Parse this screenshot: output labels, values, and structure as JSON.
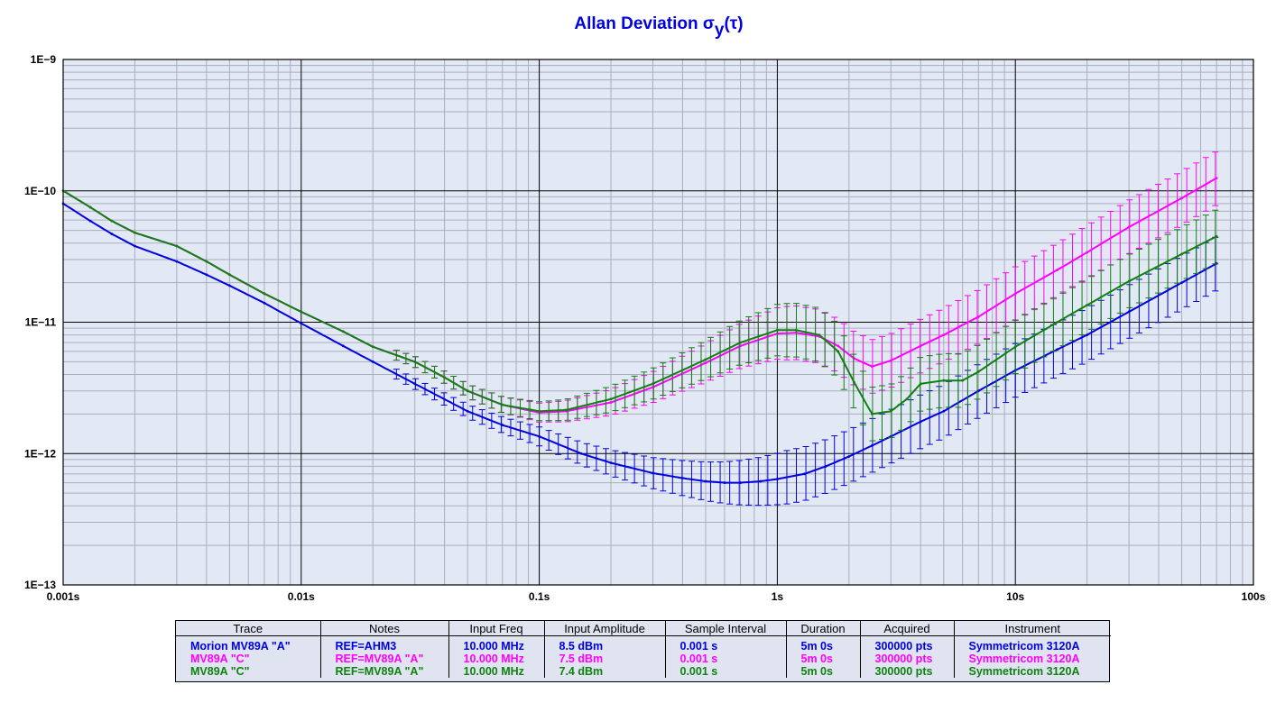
{
  "colors": {
    "background": "#e2e8f4",
    "grid_major": "#000000",
    "grid_minor": "#a8aebc",
    "title": "#0000e0"
  },
  "chart_data": {
    "type": "line",
    "title": "Allan Deviation σ",
    "title_sub": "y",
    "title_tail": "(τ)",
    "xscale": "log",
    "yscale": "log",
    "xlim": [
      0.001,
      100
    ],
    "ylim": [
      1e-13,
      1e-09
    ],
    "grid": true,
    "xticks": [
      {
        "value": 0.001,
        "label": "0.001s"
      },
      {
        "value": 0.01,
        "label": "0.01s"
      },
      {
        "value": 0.1,
        "label": "0.1s"
      },
      {
        "value": 1,
        "label": "1s"
      },
      {
        "value": 10,
        "label": "10s"
      },
      {
        "value": 100,
        "label": "100s"
      }
    ],
    "yticks": [
      {
        "value": 1e-09,
        "label": "1E−9"
      },
      {
        "value": 1e-10,
        "label": "1E−10"
      },
      {
        "value": 1e-11,
        "label": "1E−11"
      },
      {
        "value": 1e-12,
        "label": "1E−12"
      },
      {
        "value": 1e-13,
        "label": "1E−13"
      }
    ],
    "series": [
      {
        "name": "Morion MV89A \"A\"",
        "color": "#0000e0",
        "points": [
          [
            0.001,
            8e-11
          ],
          [
            0.0013,
            5.9e-11
          ],
          [
            0.0016,
            4.7e-11
          ],
          [
            0.002,
            3.8e-11
          ],
          [
            0.003,
            2.9e-11
          ],
          [
            0.004,
            2.3e-11
          ],
          [
            0.005,
            1.9e-11
          ],
          [
            0.007,
            1.4e-11
          ],
          [
            0.01,
            9.8e-12
          ],
          [
            0.015,
            6.6e-12
          ],
          [
            0.02,
            5e-12
          ],
          [
            0.03,
            3.4e-12
          ],
          [
            0.05,
            2.1e-12
          ],
          [
            0.07,
            1.65e-12
          ],
          [
            0.1,
            1.35e-12
          ],
          [
            0.15,
            1e-12
          ],
          [
            0.2,
            8.5e-13
          ],
          [
            0.3,
            7.1e-13
          ],
          [
            0.4,
            6.5e-13
          ],
          [
            0.5,
            6.15e-13
          ],
          [
            0.6,
            6e-13
          ],
          [
            0.7,
            6e-13
          ],
          [
            0.85,
            6.15e-13
          ],
          [
            1.0,
            6.4e-13
          ],
          [
            1.3,
            7e-13
          ],
          [
            1.6,
            8e-13
          ],
          [
            2.0,
            9.5e-13
          ],
          [
            2.5,
            1.15e-12
          ],
          [
            3.0,
            1.35e-12
          ],
          [
            4.0,
            1.75e-12
          ],
          [
            5.0,
            2.1e-12
          ],
          [
            7.0,
            3e-12
          ],
          [
            10.0,
            4.3e-12
          ],
          [
            15.0,
            6.2e-12
          ],
          [
            20.0,
            8e-12
          ],
          [
            30.0,
            1.2e-11
          ],
          [
            50.0,
            2e-11
          ],
          [
            70.0,
            2.8e-11
          ]
        ]
      },
      {
        "name": "MV89A \"C\"",
        "color": "#ff00ff",
        "points": [
          [
            0.001,
            1e-10
          ],
          [
            0.0013,
            7.5e-11
          ],
          [
            0.0016,
            5.9e-11
          ],
          [
            0.002,
            4.8e-11
          ],
          [
            0.003,
            3.8e-11
          ],
          [
            0.004,
            2.9e-11
          ],
          [
            0.005,
            2.3e-11
          ],
          [
            0.007,
            1.65e-11
          ],
          [
            0.01,
            1.2e-11
          ],
          [
            0.015,
            8.5e-12
          ],
          [
            0.02,
            6.5e-12
          ],
          [
            0.03,
            5e-12
          ],
          [
            0.04,
            3.8e-12
          ],
          [
            0.05,
            3e-12
          ],
          [
            0.07,
            2.35e-12
          ],
          [
            0.1,
            2.05e-12
          ],
          [
            0.13,
            2.1e-12
          ],
          [
            0.2,
            2.45e-12
          ],
          [
            0.3,
            3.2e-12
          ],
          [
            0.5,
            4.9e-12
          ],
          [
            0.7,
            6.6e-12
          ],
          [
            1.0,
            8.2e-12
          ],
          [
            1.2,
            8.3e-12
          ],
          [
            1.5,
            7.8e-12
          ],
          [
            1.8,
            6.6e-12
          ],
          [
            2.1,
            5.3e-12
          ],
          [
            2.5,
            4.6e-12
          ],
          [
            3.0,
            5.1e-12
          ],
          [
            4.0,
            6.6e-12
          ],
          [
            5.0,
            8e-12
          ],
          [
            7.0,
            1.1e-11
          ],
          [
            10.0,
            1.65e-11
          ],
          [
            15.0,
            2.5e-11
          ],
          [
            20.0,
            3.4e-11
          ],
          [
            30.0,
            5.3e-11
          ],
          [
            50.0,
            8.8e-11
          ],
          [
            70.0,
            1.25e-10
          ]
        ]
      },
      {
        "name": "MV89A \"C\"",
        "color": "#108010",
        "points": [
          [
            0.001,
            1e-10
          ],
          [
            0.0013,
            7.5e-11
          ],
          [
            0.0016,
            5.9e-11
          ],
          [
            0.002,
            4.8e-11
          ],
          [
            0.003,
            3.8e-11
          ],
          [
            0.004,
            2.9e-11
          ],
          [
            0.005,
            2.3e-11
          ],
          [
            0.007,
            1.65e-11
          ],
          [
            0.01,
            1.2e-11
          ],
          [
            0.015,
            8.5e-12
          ],
          [
            0.02,
            6.5e-12
          ],
          [
            0.03,
            5e-12
          ],
          [
            0.04,
            3.8e-12
          ],
          [
            0.05,
            3e-12
          ],
          [
            0.07,
            2.35e-12
          ],
          [
            0.1,
            2.1e-12
          ],
          [
            0.13,
            2.15e-12
          ],
          [
            0.2,
            2.6e-12
          ],
          [
            0.3,
            3.4e-12
          ],
          [
            0.5,
            5.2e-12
          ],
          [
            0.7,
            7e-12
          ],
          [
            1.0,
            8.7e-12
          ],
          [
            1.2,
            8.7e-12
          ],
          [
            1.5,
            8e-12
          ],
          [
            1.8,
            6e-12
          ],
          [
            2.1,
            3.5e-12
          ],
          [
            2.5,
            2e-12
          ],
          [
            3.0,
            2.1e-12
          ],
          [
            3.5,
            2.6e-12
          ],
          [
            4.0,
            3.4e-12
          ],
          [
            5.0,
            3.6e-12
          ],
          [
            6.0,
            3.6e-12
          ],
          [
            7.0,
            4.2e-12
          ],
          [
            10.0,
            6.5e-12
          ],
          [
            15.0,
            1e-11
          ],
          [
            20.0,
            1.35e-11
          ],
          [
            30.0,
            2.05e-11
          ],
          [
            50.0,
            3.3e-11
          ],
          [
            70.0,
            4.5e-11
          ]
        ]
      }
    ]
  },
  "legend_table": {
    "headers": [
      "Trace",
      "Notes",
      "Input Freq",
      "Input Amplitude",
      "Sample Interval",
      "Duration",
      "Acquired",
      "Instrument"
    ],
    "rows": [
      {
        "color": "#0000e0",
        "cells": [
          "Morion MV89A \"A\"",
          "REF=AHM3",
          "10.000 MHz",
          "8.5 dBm",
          "0.001 s",
          "5m 0s",
          "300000 pts",
          "Symmetricom 3120A"
        ]
      },
      {
        "color": "#ff00ff",
        "cells": [
          "MV89A \"C\"",
          "REF=MV89A \"A\"",
          "10.000 MHz",
          "7.5 dBm",
          "0.001 s",
          "5m 0s",
          "300000 pts",
          "Symmetricom 3120A"
        ]
      },
      {
        "color": "#108010",
        "cells": [
          "MV89A \"C\"",
          "REF=MV89A \"A\"",
          "10.000 MHz",
          "7.4 dBm",
          "0.001 s",
          "5m 0s",
          "300000 pts",
          "Symmetricom 3120A"
        ]
      }
    ]
  }
}
